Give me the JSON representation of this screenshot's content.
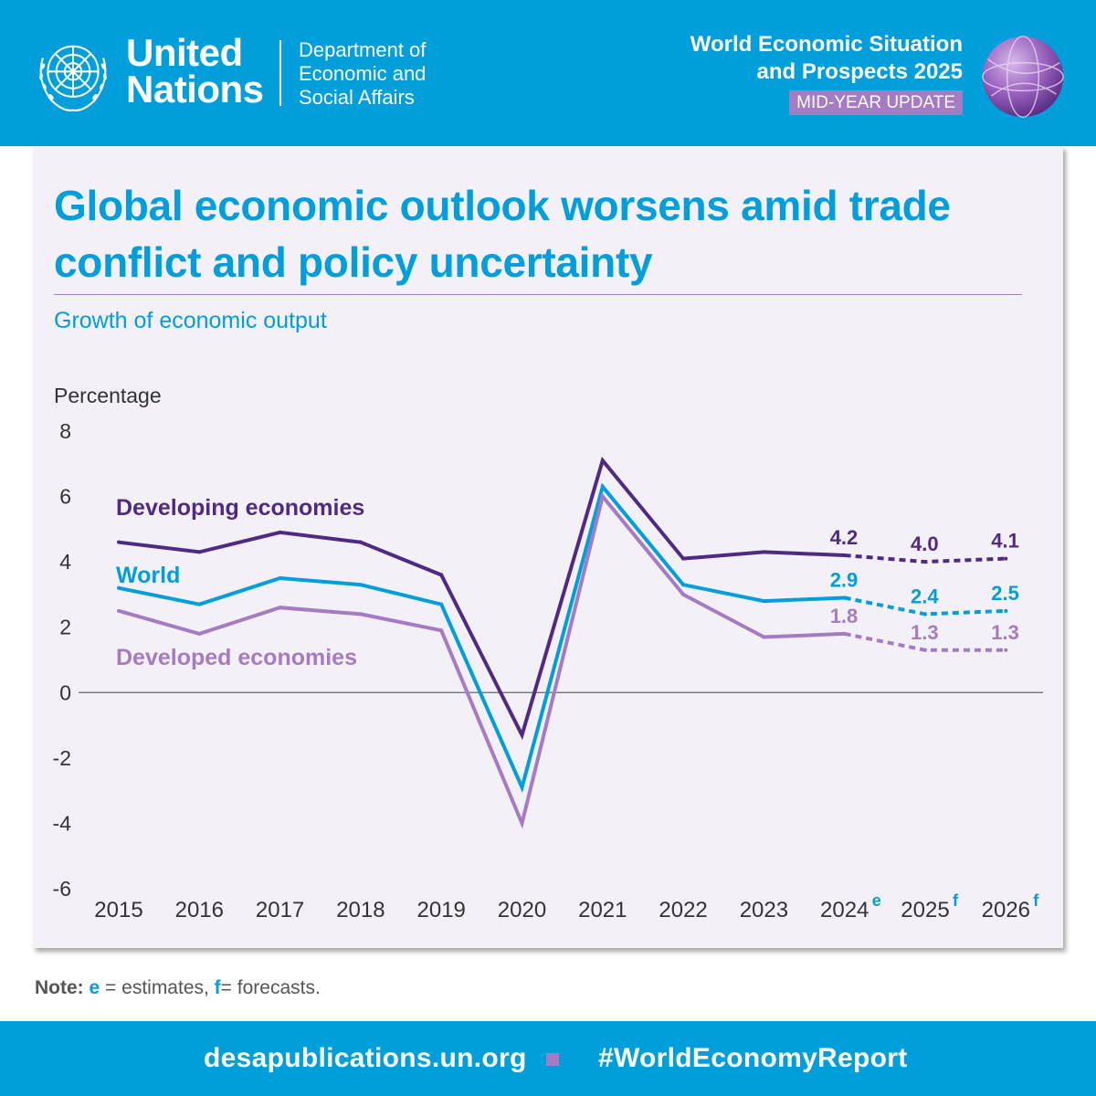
{
  "header": {
    "org_line1": "United",
    "org_line2": "Nations",
    "dept_line1": "Department of",
    "dept_line2": "Economic and",
    "dept_line3": "Social Affairs",
    "report_line1": "World Economic Situation",
    "report_line2": "and Prospects 2025",
    "badge": "MID-YEAR UPDATE"
  },
  "colors": {
    "header_blue": "#009edb",
    "developing": "#4f2a84",
    "world": "#009edb",
    "developed": "#a57bc4"
  },
  "chart_data": {
    "type": "line",
    "title": "Global economic outlook worsens amid trade conflict and policy uncertainty",
    "title_line1": "Global economic outlook worsens amid trade",
    "title_line2": "conflict and policy uncertainty",
    "subtitle": "Growth of economic output",
    "ylabel": "Percentage",
    "xlabel": "",
    "ylim": [
      -6,
      8
    ],
    "yticks": [
      8,
      6,
      4,
      2,
      0,
      -2,
      -4,
      -6
    ],
    "categories": [
      "2015",
      "2016",
      "2017",
      "2018",
      "2019",
      "2020",
      "2021",
      "2022",
      "2023",
      "2024",
      "2025",
      "2026"
    ],
    "category_superscripts": [
      "",
      "",
      "",
      "",
      "",
      "",
      "",
      "",
      "",
      "e",
      "f",
      "f"
    ],
    "forecast_start_index": 9,
    "series": [
      {
        "name": "Developing economies",
        "color": "#4f2a84",
        "values": [
          4.6,
          4.3,
          4.9,
          4.6,
          3.6,
          -1.3,
          7.1,
          4.1,
          4.3,
          4.2,
          4.0,
          4.1
        ],
        "data_labels": {
          "9": "4.2",
          "10": "4.0",
          "11": "4.1"
        }
      },
      {
        "name": "World",
        "color": "#009edb",
        "values": [
          3.2,
          2.7,
          3.5,
          3.3,
          2.7,
          -2.9,
          6.3,
          3.3,
          2.8,
          2.9,
          2.4,
          2.5
        ],
        "data_labels": {
          "9": "2.9",
          "10": "2.4",
          "11": "2.5"
        }
      },
      {
        "name": "Developed economies",
        "color": "#a57bc4",
        "values": [
          2.5,
          1.8,
          2.6,
          2.4,
          1.9,
          -4.0,
          6.0,
          3.0,
          1.7,
          1.8,
          1.3,
          1.3
        ],
        "data_labels": {
          "9": "1.8",
          "10": "1.3",
          "11": "1.3"
        }
      }
    ],
    "grid": false,
    "legend": "inline"
  },
  "note": {
    "label": "Note:",
    "e_key": "e",
    "e_text": " = estimates, ",
    "f_key": "f",
    "f_text": "= forecasts."
  },
  "footer": {
    "link": "desapublications.un.org",
    "hashtag": "#WorldEconomyReport"
  }
}
